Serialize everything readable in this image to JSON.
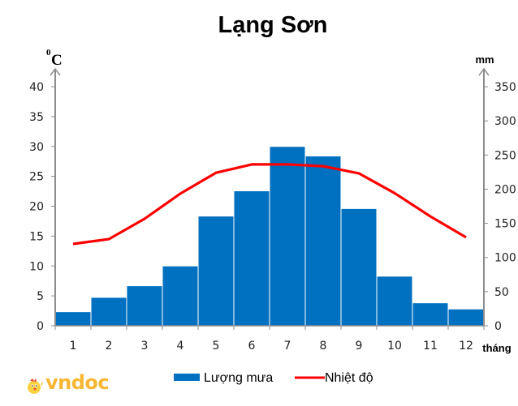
{
  "chart_data": {
    "type": "bar+line",
    "title": "Lạng Sơn",
    "xlabel": "tháng",
    "ylabel_left": "0C",
    "ylabel_left_sup": "0",
    "ylabel_left_main": "C",
    "ylabel_right": "mm",
    "categories": [
      "1",
      "2",
      "3",
      "4",
      "5",
      "6",
      "7",
      "8",
      "9",
      "10",
      "11",
      "12"
    ],
    "series": [
      {
        "name": "Lượng mưa",
        "type": "bar",
        "axis": "right",
        "color": "#0070C0",
        "values": [
          20,
          41,
          58,
          87,
          160,
          197,
          262,
          248,
          171,
          72,
          33,
          24
        ]
      },
      {
        "name": "Nhiệt độ",
        "type": "line",
        "axis": "left",
        "color": "#FF0000",
        "values": [
          13.7,
          14.5,
          17.9,
          22.1,
          25.6,
          27.0,
          27.0,
          26.7,
          25.5,
          22.2,
          18.3,
          14.8
        ]
      }
    ],
    "left_axis": {
      "min": 0,
      "max": 40,
      "step": 5,
      "ticks": [
        "0",
        "5",
        "10",
        "15",
        "20",
        "25",
        "30",
        "35",
        "40"
      ]
    },
    "right_axis": {
      "min": 0,
      "max": 350,
      "step": 50,
      "ticks": [
        "0",
        "50",
        "100",
        "150",
        "200",
        "250",
        "300",
        "350"
      ]
    },
    "grid": false,
    "legend_position": "bottom"
  },
  "legend": {
    "items": [
      {
        "label": "Lượng mưa",
        "kind": "bar",
        "color": "#0070C0"
      },
      {
        "label": "Nhiệt độ",
        "kind": "line",
        "color": "#FF0000"
      }
    ]
  },
  "watermark": {
    "text": "vndoc",
    "icon": "chick-mascot-icon"
  }
}
